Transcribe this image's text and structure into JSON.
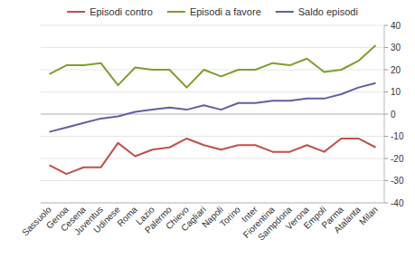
{
  "chart_data": {
    "type": "line",
    "categories": [
      "Sassuolo",
      "Genoa",
      "Cesena",
      "Juventus",
      "Udinese",
      "Roma",
      "Lazio",
      "Palermo",
      "Chievo",
      "Cagliari",
      "Napoli",
      "Torino",
      "Inter",
      "Fiorentina",
      "Sampdoria",
      "Verona",
      "Empoli",
      "Parma",
      "Atalanta",
      "Milan"
    ],
    "series": [
      {
        "name": "Episodi contro",
        "color": "#c0504d",
        "values": [
          -23,
          -27,
          -24,
          -24,
          -13,
          -19,
          -16,
          -15,
          -11,
          -14,
          -16,
          -14,
          -14,
          -17,
          -17,
          -14,
          -17,
          -11,
          -11,
          -15
        ]
      },
      {
        "name": "Episodi a favore",
        "color": "#7f9e2e",
        "values": [
          18,
          22,
          22,
          23,
          13,
          21,
          20,
          20,
          12,
          20,
          17,
          20,
          20,
          23,
          22,
          25,
          19,
          20,
          24,
          31
        ]
      },
      {
        "name": "Saldo episodi",
        "color": "#6060a0",
        "values": [
          -8,
          -6,
          -4,
          -2,
          -1,
          1,
          2,
          3,
          2,
          4,
          2,
          5,
          5,
          6,
          6,
          7,
          7,
          9,
          12,
          14
        ]
      }
    ],
    "ylim": [
      -40,
      40
    ],
    "yticks": [
      -40,
      -30,
      -20,
      -10,
      0,
      10,
      20,
      30,
      40
    ],
    "grid": true,
    "legend": "top"
  }
}
